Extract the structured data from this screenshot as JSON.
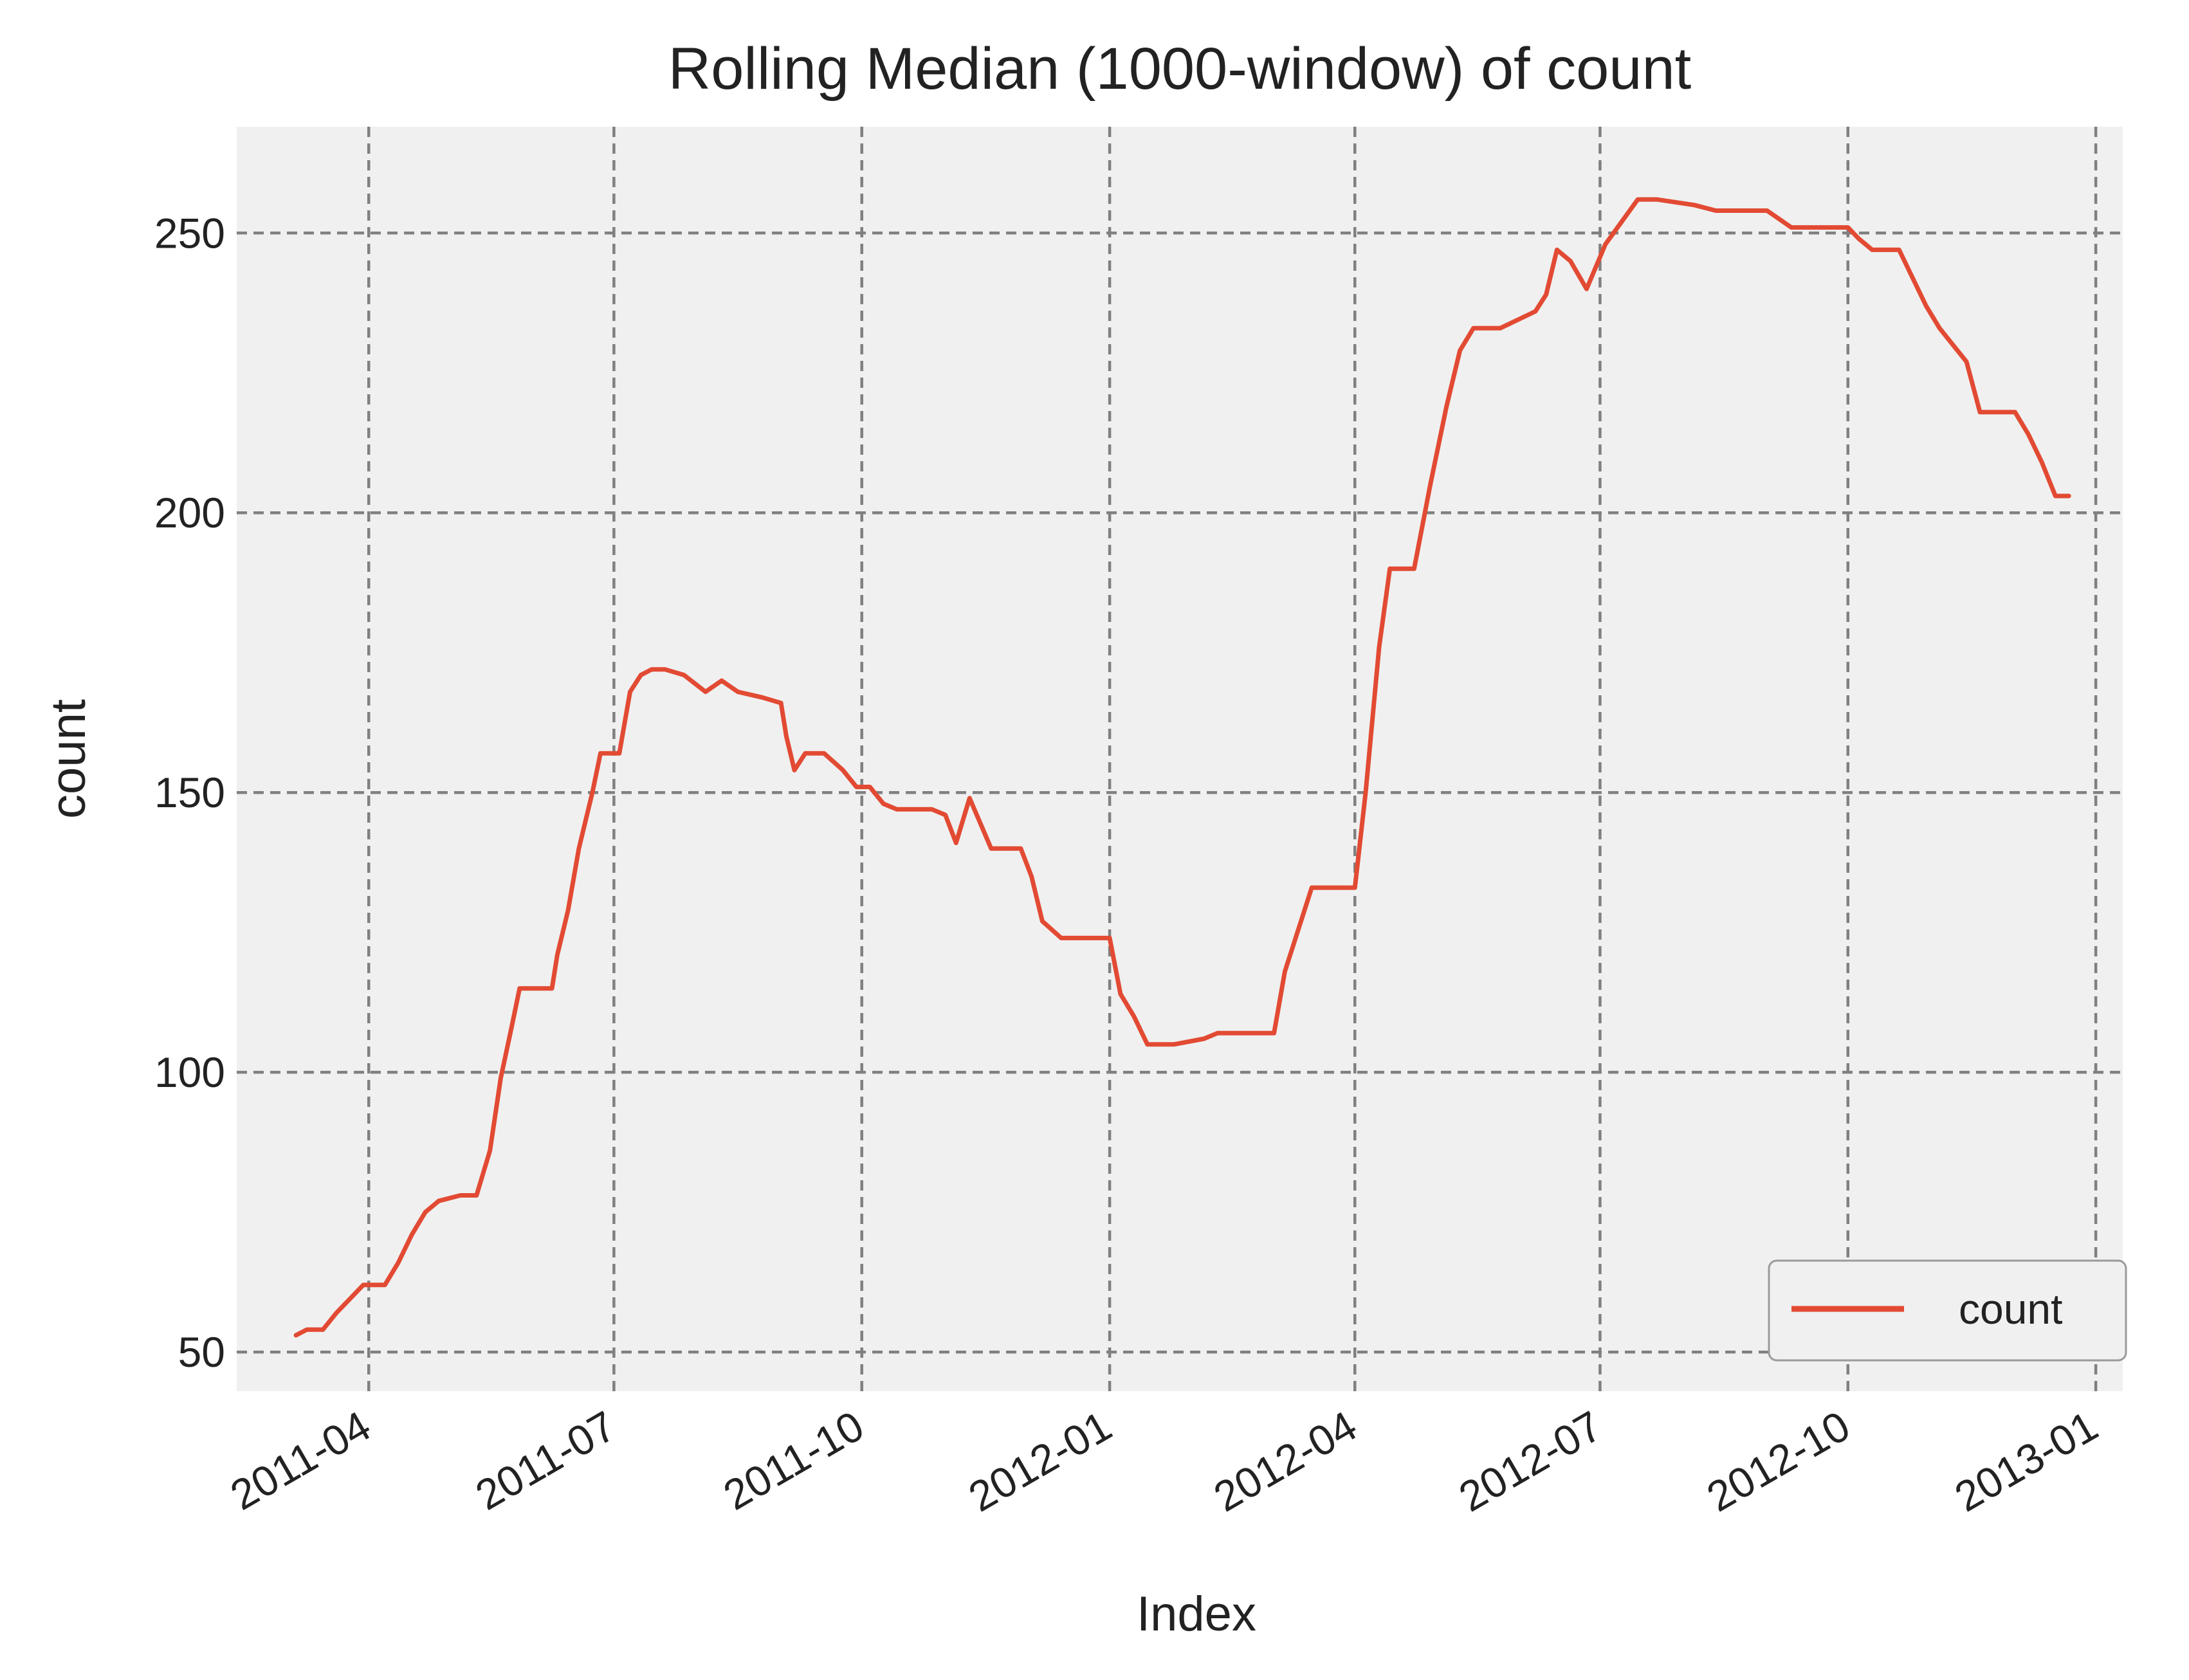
{
  "chart_data": {
    "type": "line",
    "title": "Rolling Median (1000-window) of count",
    "xlabel": "Index",
    "ylabel": "count",
    "x_type": "date",
    "xlim": [
      "2011-02-11",
      "2013-01-11"
    ],
    "ylim": [
      43,
      269
    ],
    "x_ticks": [
      "2011-04-01",
      "2011-07-01",
      "2011-10-01",
      "2012-01-01",
      "2012-04-01",
      "2012-07-01",
      "2012-10-01",
      "2013-01-01"
    ],
    "x_tick_labels": [
      "2011-04",
      "2011-07",
      "2011-10",
      "2012-01",
      "2012-04",
      "2012-07",
      "2012-10",
      "2013-01"
    ],
    "y_ticks": [
      50,
      100,
      150,
      200,
      250
    ],
    "y_tick_labels": [
      "50",
      "100",
      "150",
      "200",
      "250"
    ],
    "grid": true,
    "legend": {
      "placement": "lower-right",
      "entries": [
        "count"
      ]
    },
    "colors": {
      "series": "#e24a33",
      "plot_bg": "#f0f0f0",
      "grid": "#808080"
    },
    "series": [
      {
        "name": "count",
        "x": [
          "2011-03-05",
          "2011-03-09",
          "2011-03-15",
          "2011-03-20",
          "2011-03-30",
          "2011-04-07",
          "2011-04-12",
          "2011-04-17",
          "2011-04-22",
          "2011-04-27",
          "2011-05-05",
          "2011-05-11",
          "2011-05-16",
          "2011-05-20",
          "2011-05-24",
          "2011-05-27",
          "2011-05-31",
          "2011-06-08",
          "2011-06-10",
          "2011-06-14",
          "2011-06-18",
          "2011-06-23",
          "2011-06-26",
          "2011-07-01",
          "2011-07-03",
          "2011-07-07",
          "2011-07-11",
          "2011-07-15",
          "2011-07-20",
          "2011-07-27",
          "2011-08-04",
          "2011-08-10",
          "2011-08-16",
          "2011-08-25",
          "2011-09-01",
          "2011-09-03",
          "2011-09-06",
          "2011-09-10",
          "2011-09-13",
          "2011-09-17",
          "2011-09-24",
          "2011-09-29",
          "2011-10-04",
          "2011-10-09",
          "2011-10-14",
          "2011-10-27",
          "2011-11-01",
          "2011-11-05",
          "2011-11-10",
          "2011-11-18",
          "2011-11-23",
          "2011-11-29",
          "2011-12-03",
          "2011-12-07",
          "2011-12-14",
          "2012-01-01",
          "2012-01-05",
          "2012-01-10",
          "2012-01-15",
          "2012-01-20",
          "2012-01-25",
          "2012-02-05",
          "2012-02-10",
          "2012-02-20",
          "2012-02-28",
          "2012-03-02",
          "2012-03-06",
          "2012-03-12",
          "2012-03-16",
          "2012-03-20",
          "2012-04-01",
          "2012-04-05",
          "2012-04-10",
          "2012-04-14",
          "2012-04-18",
          "2012-04-23",
          "2012-04-29",
          "2012-05-05",
          "2012-05-10",
          "2012-05-15",
          "2012-05-20",
          "2012-05-25",
          "2012-06-07",
          "2012-06-11",
          "2012-06-15",
          "2012-06-20",
          "2012-06-26",
          "2012-07-03",
          "2012-07-09",
          "2012-07-15",
          "2012-07-22",
          "2012-08-05",
          "2012-08-13",
          "2012-08-21",
          "2012-09-01",
          "2012-09-10",
          "2012-09-17",
          "2012-10-01",
          "2012-10-05",
          "2012-10-10",
          "2012-10-15",
          "2012-10-20",
          "2012-10-30",
          "2012-11-04",
          "2012-11-09",
          "2012-11-14",
          "2012-11-19",
          "2012-11-23",
          "2012-12-02",
          "2012-12-07",
          "2012-12-12",
          "2012-12-17",
          "2012-12-22"
        ],
        "values": [
          53,
          54,
          54,
          57,
          62,
          62,
          66,
          71,
          75,
          77,
          78,
          78,
          86,
          99,
          108,
          115,
          115,
          115,
          121,
          129,
          140,
          150,
          157,
          157,
          157,
          168,
          171,
          172,
          172,
          171,
          168,
          170,
          168,
          167,
          166,
          160,
          154,
          157,
          157,
          157,
          154,
          151,
          151,
          148,
          147,
          147,
          146,
          141,
          149,
          140,
          140,
          140,
          135,
          127,
          124,
          124,
          114,
          110,
          105,
          105,
          105,
          106,
          107,
          107,
          107,
          107,
          118,
          127,
          133,
          133,
          133,
          150,
          176,
          190,
          190,
          190,
          205,
          219,
          229,
          233,
          233,
          233,
          236,
          239,
          247,
          245,
          240,
          248,
          252,
          256,
          256,
          255,
          254,
          254,
          254,
          251,
          251,
          251,
          249,
          247,
          247,
          247,
          237,
          233,
          230,
          227,
          218,
          218,
          218,
          214,
          209,
          203,
          203
        ]
      }
    ]
  }
}
